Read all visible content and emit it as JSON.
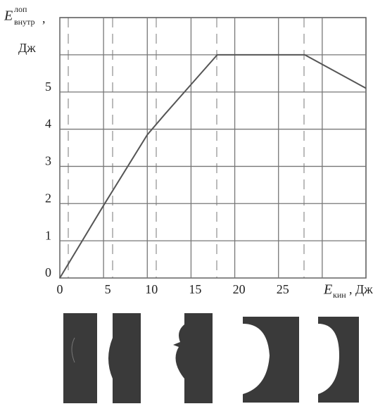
{
  "chart_data": {
    "type": "line",
    "y_label": {
      "symbol": "E",
      "superscript": "лоп",
      "subscript": "внутр",
      "punct": ",",
      "unit": "Дж"
    },
    "x_label": {
      "symbol": "E",
      "subscript": "кин",
      "rest": ", Дж"
    },
    "x": [
      0,
      5,
      10,
      12,
      15,
      18,
      28,
      35
    ],
    "series": [
      {
        "color": "#555555",
        "values": [
          0,
          1.95,
          3.85,
          4.4,
          5.2,
          6.0,
          6.0,
          5.1
        ]
      }
    ],
    "xlim": [
      0,
      35
    ],
    "xticks": [
      0,
      5,
      10,
      15,
      20,
      25
    ],
    "ylim": [
      0,
      7
    ],
    "yticks": [
      0,
      1,
      2,
      3,
      4,
      5
    ],
    "grid": true
  }
}
